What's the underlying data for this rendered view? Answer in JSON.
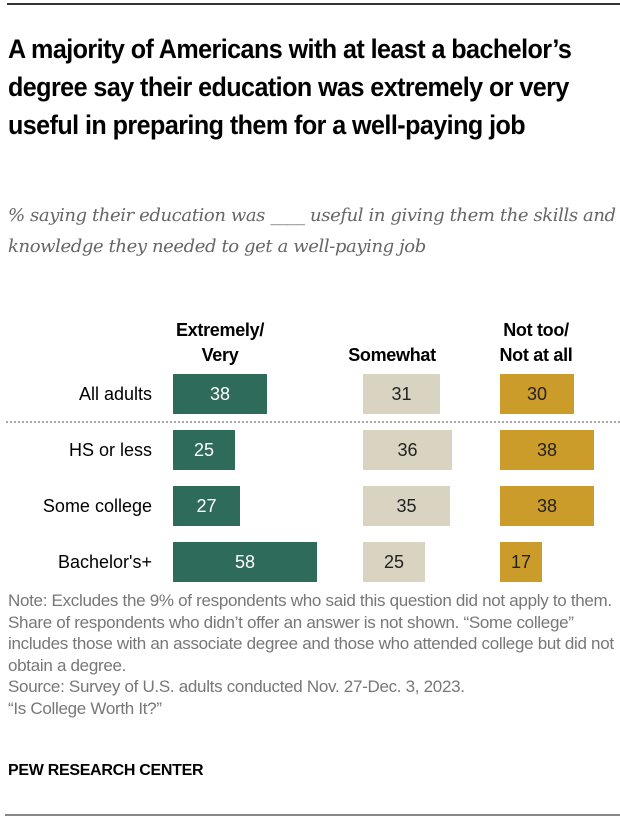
{
  "header": {
    "title": "A majority of Americans with at least a bachelor’s degree say their education was extremely or very useful in preparing them for a well-paying job",
    "subtitle": "% saying their education was ____ useful in giving them the skills and knowledge they needed to get a well-paying job"
  },
  "colors": {
    "extremely_very": "#2f6b5a",
    "somewhat": "#d9d4c2",
    "not_too": "#cc9c2a"
  },
  "chart_data": {
    "type": "bar",
    "orientation": "horizontal",
    "stacking": "side-by-side columns",
    "title": "A majority of Americans with at least a bachelor’s degree say their education was extremely or very useful in preparing them for a well-paying job",
    "subtitle": "% saying their education was ____ useful in giving them the skills and knowledge they needed to get a well-paying job",
    "categories": [
      "All adults",
      "HS or less",
      "Some college",
      "Bachelor's+"
    ],
    "series": [
      {
        "name": "Extremely/ Very",
        "name_lines": [
          "Extremely/",
          "Very"
        ],
        "values": [
          38,
          25,
          27,
          58
        ]
      },
      {
        "name": "Somewhat",
        "name_lines": [
          "Somewhat"
        ],
        "values": [
          31,
          36,
          35,
          25
        ]
      },
      {
        "name": "Not too/ Not at all",
        "name_lines": [
          "Not too/",
          "Not at all"
        ],
        "values": [
          30,
          38,
          38,
          17
        ]
      }
    ],
    "xlabel": "",
    "ylabel": "",
    "xlim": [
      0,
      100
    ],
    "grid": false,
    "data_labels": true,
    "divider_after_category": "All adults"
  },
  "footer": {
    "note": "Note: Excludes the 9% of respondents who said this question did not apply to them. Share of respondents who didn’t offer an answer is not shown. “Some college” includes those with an associate degree and those who attended college but did not obtain a degree.",
    "source": "Source: Survey of U.S. adults conducted Nov. 27-Dec. 3, 2023.",
    "report": "“Is College Worth It?”",
    "org": "PEW RESEARCH CENTER"
  }
}
